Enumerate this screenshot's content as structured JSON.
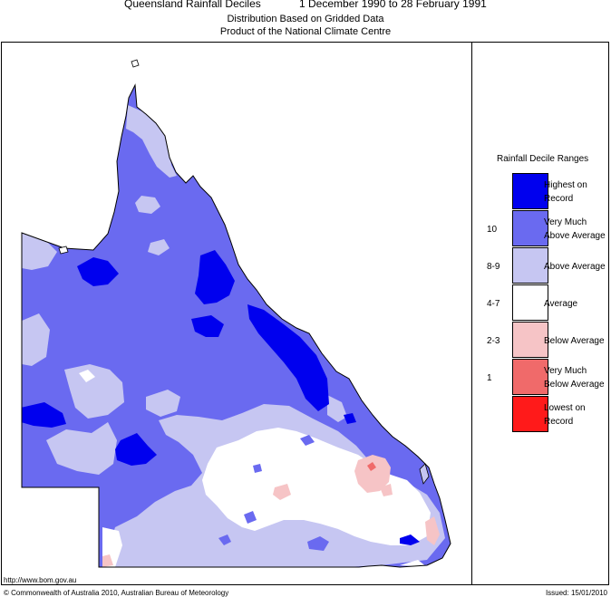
{
  "header": {
    "title": "Queensland Rainfall Deciles",
    "period": "1 December 1990 to 28 February 1991",
    "subtitle1": "Distribution Based on Gridded Data",
    "subtitle2": "Product of the National Climate Centre"
  },
  "legend": {
    "title": "Rainfall Decile Ranges",
    "items": [
      {
        "line1": "Highest on",
        "line2": "Record",
        "range": "",
        "color": "#0000ee"
      },
      {
        "line1": "Very Much",
        "line2": "Above Average",
        "range": "10",
        "color": "#6a6af0"
      },
      {
        "line1": "Above Average",
        "line2": "",
        "range": "8-9",
        "color": "#c6c6f2"
      },
      {
        "line1": "Average",
        "line2": "",
        "range": "4-7",
        "color": "#ffffff"
      },
      {
        "line1": "Below Average",
        "line2": "",
        "range": "2-3",
        "color": "#f6c4c6"
      },
      {
        "line1": "Very Much",
        "line2": "Below Average",
        "range": "1",
        "color": "#f06a6a"
      },
      {
        "line1": "Lowest on",
        "line2": "Record",
        "range": "",
        "color": "#ff1a1a"
      }
    ]
  },
  "footer": {
    "url": "http://www.bom.gov.au",
    "copyright": "© Commonwealth of Australia 2010, Australian Bureau of Meteorology",
    "issued": "Issued: 15/01/2010"
  }
}
